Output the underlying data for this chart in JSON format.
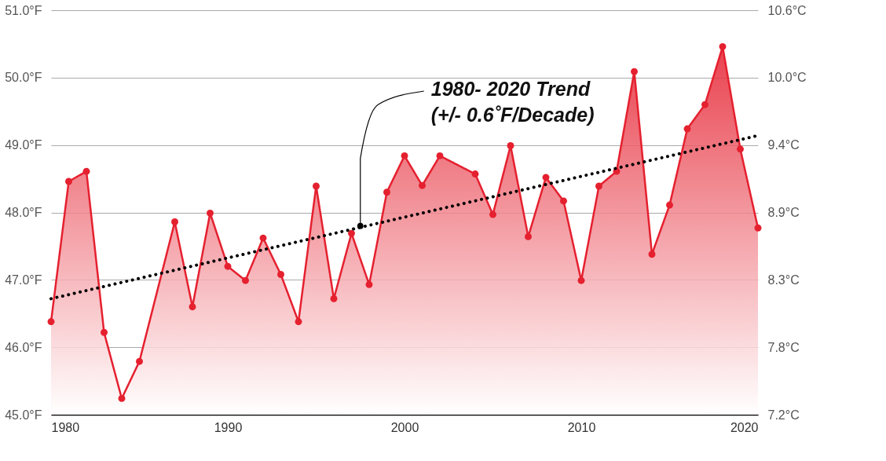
{
  "chart_data": {
    "type": "area",
    "xlim": [
      1980,
      2020
    ],
    "xticks": [
      1980,
      1990,
      2000,
      2010,
      2020
    ],
    "ylim": [
      45,
      51
    ],
    "yticks": [
      {
        "value": 45,
        "label": "45.0°F"
      },
      {
        "value": 46,
        "label": "46.0°F"
      },
      {
        "value": 47,
        "label": "47.0°F"
      },
      {
        "value": 48,
        "label": "48.0°F"
      },
      {
        "value": 49,
        "label": "49.0°F"
      },
      {
        "value": 50,
        "label": "50.0°F"
      },
      {
        "value": 51,
        "label": "51.0°F"
      }
    ],
    "y2lim": [
      7.222,
      10.556
    ],
    "y2ticks": [
      {
        "value": 7.222,
        "label": "7.2°C"
      },
      {
        "value": 7.778,
        "label": "7.8°C"
      },
      {
        "value": 8.333,
        "label": "8.3°C"
      },
      {
        "value": 8.889,
        "label": "8.9°C"
      },
      {
        "value": 9.444,
        "label": "9.4°C"
      },
      {
        "value": 10.0,
        "label": "10.0°C"
      },
      {
        "value": 10.556,
        "label": "10.6°C"
      }
    ],
    "grid": "y",
    "marker": "circle",
    "series": [
      {
        "color": "#e5202f",
        "x": [
          1980,
          1981,
          1982,
          1983,
          1984,
          1985,
          1987,
          1988,
          1989,
          1990,
          1991,
          1992,
          1993,
          1994,
          1995,
          1996,
          1997,
          1998,
          1999,
          2000,
          2001,
          2002,
          2004,
          2005,
          2006,
          2007,
          2008,
          2009,
          2010,
          2011,
          2012,
          2013,
          2014,
          2015,
          2016,
          2017,
          2018,
          2019,
          2020
        ],
        "values": [
          46.38,
          48.46,
          48.61,
          46.22,
          45.24,
          45.79,
          47.86,
          46.6,
          47.99,
          47.2,
          46.99,
          47.62,
          47.08,
          46.38,
          48.39,
          46.72,
          47.69,
          46.93,
          48.3,
          48.84,
          48.4,
          48.84,
          48.57,
          47.97,
          48.99,
          47.64,
          48.52,
          48.17,
          46.99,
          48.39,
          48.61,
          50.09,
          47.38,
          48.11,
          49.24,
          49.6,
          50.46,
          48.94,
          47.77
        ]
      },
      {
        "type": "line",
        "color": "#000000",
        "line_style": "dotted",
        "marker": "none",
        "x": [
          1980,
          2020
        ],
        "values": [
          46.72,
          49.14
        ]
      }
    ],
    "annotations": [
      {
        "text": "1980- 2020 Trend\n(+/- 0.6˚F/Decade)",
        "x": 1997.5,
        "y": 47.8
      }
    ]
  }
}
